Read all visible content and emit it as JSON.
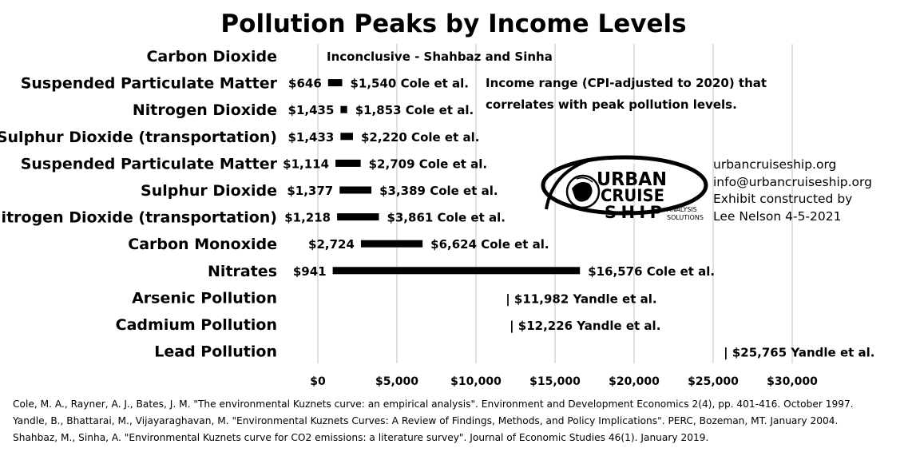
{
  "chart_data": {
    "type": "bar",
    "orientation": "horizontal",
    "title": "Pollution Peaks by Income Levels",
    "annotation": [
      "Income range (CPI-adjusted to 2020) that",
      "correlates with peak pollution levels."
    ],
    "xlim": [
      0,
      30000
    ],
    "xticks": [
      0,
      5000,
      10000,
      15000,
      20000,
      25000,
      30000
    ],
    "xtick_labels": [
      "$0",
      "$5,000",
      "$10,000",
      "$15,000",
      "$20,000",
      "$25,000",
      "$30,000"
    ],
    "grid": "vertical",
    "categories": [
      {
        "name": "Carbon Dioxide",
        "note": "Inconclusive - Shahbaz and Sinha"
      },
      {
        "name": "Suspended Particulate Matter",
        "low": 646,
        "high": 1540,
        "low_label": "$646",
        "high_label": "$1,540 Cole et al."
      },
      {
        "name": "Nitrogen Dioxide",
        "low": 1435,
        "high": 1853,
        "low_label": "$1,435",
        "high_label": "$1,853 Cole et al."
      },
      {
        "name": "Sulphur Dioxide (transportation)",
        "low": 1433,
        "high": 2220,
        "low_label": "$1,433",
        "high_label": "$2,220 Cole et al."
      },
      {
        "name": "Suspended Particulate Matter",
        "low": 1114,
        "high": 2709,
        "low_label": "$1,114",
        "high_label": "$2,709 Cole et al."
      },
      {
        "name": "Sulphur Dioxide",
        "low": 1377,
        "high": 3389,
        "low_label": "$1,377",
        "high_label": "$3,389 Cole et al."
      },
      {
        "name": "Nitrogen Dioxide (transportation)",
        "low": 1218,
        "high": 3861,
        "low_label": "$1,218",
        "high_label": "$3,861 Cole et al."
      },
      {
        "name": "Carbon Monoxide",
        "low": 2724,
        "high": 6624,
        "low_label": "$2,724",
        "high_label": "$6,624 Cole et al."
      },
      {
        "name": "Nitrates",
        "low": 941,
        "high": 16576,
        "low_label": "$941",
        "high_label": "$16,576 Cole et al."
      },
      {
        "name": "Arsenic Pollution",
        "point": 11982,
        "point_label": "| $11,982 Yandle et al."
      },
      {
        "name": "Cadmium Pollution",
        "point": 12226,
        "point_label": "| $12,226 Yandle et al."
      },
      {
        "name": "Lead Pollution",
        "point": 25765,
        "point_label": "| $25,765 Yandle et al."
      }
    ]
  },
  "logo": {
    "line1": "URBAN",
    "line2": "CRUISE",
    "line3": "SHIP",
    "sub1": "ANALYSIS",
    "sub2": "SOLUTIONS"
  },
  "contact": [
    "urbancruiseship.org",
    "info@urbancruiseship.org",
    "Exhibit constructed by",
    "Lee Nelson 4-5-2021"
  ],
  "references": [
    "Cole, M. A., Rayner, A. J., Bates, J. M. \"The environmental Kuznets curve: an empirical analysis\". Environment and Development Economics 2(4), pp. 401-416. October 1997.",
    "Yandle, B., Bhattarai, M., Vijayaraghavan, M. \"Environmental Kuznets Curves: A Review of Findings, Methods, and Policy Implications\". PERC, Bozeman, MT. January 2004.",
    "Shahbaz, M., Sinha, A. \"Environmental Kuznets curve for CO2 emissions: a literature survey\". Journal of Economic Studies 46(1). January 2019."
  ]
}
